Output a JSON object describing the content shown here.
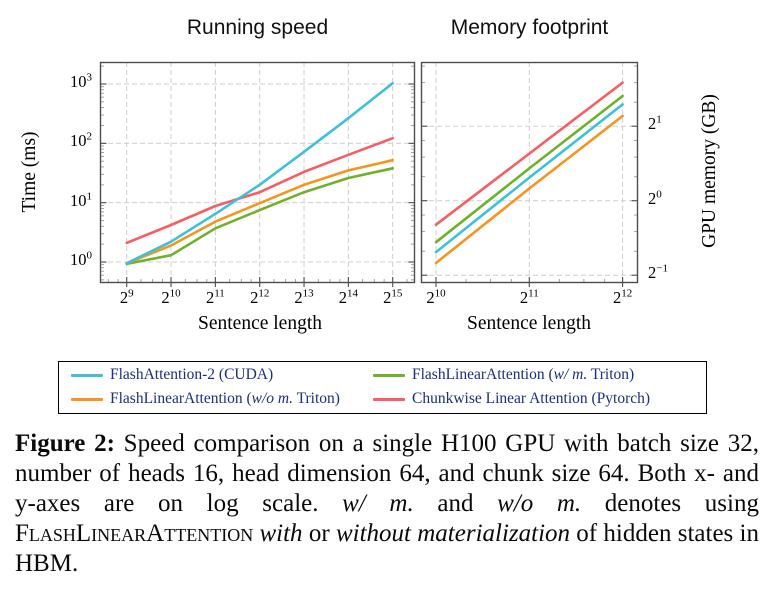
{
  "colors": {
    "cyan": "#3FC0D9",
    "green": "#6FB12D",
    "orange": "#F7941E",
    "red": "#F55F63",
    "grid": "#CFCFCF",
    "frame": "#4D4D4D",
    "minor_tick": "#999999",
    "legend_text": "#1B2F7E"
  },
  "chart_data": [
    {
      "type": "line",
      "title": "Running speed",
      "xlabel": "Sentence length",
      "ylabel": "Time (ms)",
      "x_scale": "log2",
      "y_scale": "log10",
      "grid": true,
      "x": [
        512,
        1024,
        2048,
        4096,
        8192,
        16384,
        32768
      ],
      "x_tick_labels": [
        "2^9",
        "2^10",
        "2^11",
        "2^12",
        "2^13",
        "2^14",
        "2^15"
      ],
      "y_tick_values": [
        1,
        10,
        100,
        1000
      ],
      "y_tick_labels": [
        "10^0",
        "10^1",
        "10^2",
        "10^3"
      ],
      "xlim_exp": [
        8.4,
        15.5
      ],
      "ylim": [
        0.45,
        2400
      ],
      "series": [
        {
          "name": "FlashLinearAttention (w/ m. Triton)",
          "color": "#6FB12D",
          "values": [
            0.93,
            1.3,
            3.7,
            7.5,
            15,
            26,
            38
          ]
        },
        {
          "name": "FlashLinearAttention (w/o m. Triton)",
          "color": "#F7941E",
          "values": [
            0.95,
            1.9,
            4.8,
            9.8,
            20,
            35,
            52
          ]
        },
        {
          "name": "Chunkwise Linear Attention (Pytorch)",
          "color": "#F55F63",
          "values": [
            2.1,
            4.2,
            8.8,
            15,
            33,
            64,
            122
          ]
        },
        {
          "name": "FlashAttention-2 (CUDA)",
          "color": "#3FC0D9",
          "values": [
            0.95,
            2.2,
            6.5,
            20,
            72,
            265,
            1030
          ]
        }
      ]
    },
    {
      "type": "line",
      "title": "Memory footprint",
      "xlabel": "Sentence length",
      "ylabel": "GPU memory (GB)",
      "x_scale": "log2",
      "y_scale": "log2",
      "grid": true,
      "x": [
        1024,
        2048,
        4096
      ],
      "x_tick_labels": [
        "2^10",
        "2^11",
        "2^12"
      ],
      "y_tick_values": [
        2,
        1,
        0.5
      ],
      "y_tick_labels": [
        "2^1",
        "2^0",
        "2^−1"
      ],
      "xlim_exp": [
        9.84,
        12.16
      ],
      "ylim": [
        0.46,
        3.63
      ],
      "series": [
        {
          "name": "FlashLinearAttention (w/ m. Triton)",
          "color": "#6FB12D",
          "values": [
            0.68,
            1.35,
            2.65
          ]
        },
        {
          "name": "FlashLinearAttention (w/o m. Triton)",
          "color": "#F7941E",
          "values": [
            0.56,
            1.12,
            2.2
          ]
        },
        {
          "name": "Chunkwise Linear Attention (Pytorch)",
          "color": "#F55F63",
          "values": [
            0.8,
            1.55,
            3.0
          ]
        },
        {
          "name": "FlashAttention-2 (CUDA)",
          "color": "#3FC0D9",
          "values": [
            0.62,
            1.24,
            2.45
          ]
        }
      ]
    }
  ],
  "legend": {
    "text_color": "#1B2F7E",
    "items": [
      {
        "color": "#3FC0D9",
        "parts": [
          {
            "style": "normal",
            "text": "FlashAttention-2 (CUDA)"
          }
        ]
      },
      {
        "color": "#6FB12D",
        "parts": [
          {
            "style": "normal",
            "text": "FlashLinearAttention ("
          },
          {
            "style": "italic",
            "text": "w/ m."
          },
          {
            "style": "normal",
            "text": " Triton)"
          }
        ]
      },
      {
        "color": "#F7941E",
        "parts": [
          {
            "style": "normal",
            "text": "FlashLinearAttention ("
          },
          {
            "style": "italic",
            "text": "w/o m."
          },
          {
            "style": "normal",
            "text": " Triton)"
          }
        ]
      },
      {
        "color": "#F55F63",
        "parts": [
          {
            "style": "normal",
            "text": "Chunkwise Linear Attention (Pytorch)"
          }
        ]
      }
    ]
  },
  "caption": {
    "parts": [
      {
        "style": "bold",
        "text": "Figure 2:"
      },
      {
        "style": "normal",
        "text": " Speed comparison on a single H100 GPU with batch size 32, number of heads 16, head dimension 64, and chunk size 64. Both x- and y-axes are on log scale. "
      },
      {
        "style": "italic",
        "text": "w/ m."
      },
      {
        "style": "normal",
        "text": " and "
      },
      {
        "style": "italic",
        "text": "w/o m."
      },
      {
        "style": "normal",
        "text": " denotes using "
      },
      {
        "style": "smallcaps",
        "text": "FlashLinearAttention"
      },
      {
        "style": "normal",
        "text": " "
      },
      {
        "style": "italic",
        "text": "with"
      },
      {
        "style": "normal",
        "text": " or "
      },
      {
        "style": "italic",
        "text": "without materialization"
      },
      {
        "style": "normal",
        "text": " of hidden states in HBM."
      }
    ]
  }
}
